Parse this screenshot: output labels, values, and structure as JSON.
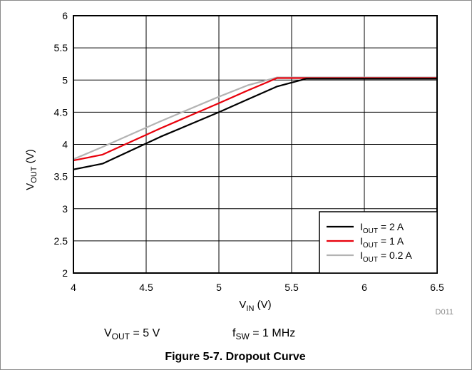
{
  "chart_data": {
    "type": "line",
    "xlabel": {
      "main": "V",
      "sub": "IN",
      "unit": " (V)"
    },
    "ylabel": {
      "main": "V",
      "sub": "OUT",
      "unit": " (V)"
    },
    "xlim": [
      4,
      6.5
    ],
    "ylim": [
      2,
      6
    ],
    "x_ticks": [
      "4",
      "4.5",
      "5",
      "5.5",
      "6",
      "6.5"
    ],
    "y_ticks": [
      "2",
      "2.5",
      "3",
      "3.5",
      "4",
      "4.5",
      "5",
      "5.5",
      "6"
    ],
    "grid": true,
    "legend_position": "bottom-right",
    "series": [
      {
        "name": {
          "main": "I",
          "sub": "OUT",
          "rest": " = 2 A"
        },
        "color": "#000000",
        "x": [
          4.0,
          4.2,
          4.6,
          5.0,
          5.2,
          5.4,
          5.6,
          6.5
        ],
        "y": [
          3.61,
          3.7,
          4.12,
          4.5,
          4.7,
          4.9,
          5.02,
          5.02
        ]
      },
      {
        "name": {
          "main": "I",
          "sub": "OUT",
          "rest": " = 1 A"
        },
        "color": "#e8000b",
        "x": [
          4.0,
          4.2,
          4.6,
          5.0,
          5.2,
          5.4,
          6.5
        ],
        "y": [
          3.75,
          3.84,
          4.25,
          4.64,
          4.84,
          5.03,
          5.03
        ]
      },
      {
        "name": {
          "main": "I",
          "sub": "OUT",
          "rest": " = 0.2 A"
        },
        "color": "#b3b3b3",
        "x": [
          4.0,
          4.2,
          4.6,
          5.0,
          5.2,
          5.4,
          6.5
        ],
        "y": [
          3.77,
          3.96,
          4.36,
          4.74,
          4.92,
          5.04,
          5.04
        ]
      }
    ]
  },
  "figure_code": "D011",
  "conditions": {
    "vout": {
      "main": "V",
      "sub": "OUT",
      "rest": " = 5 V"
    },
    "fsw": {
      "main": "f",
      "sub": "SW",
      "rest": " = 1 MHz"
    }
  },
  "caption": "Figure 5-7. Dropout Curve"
}
